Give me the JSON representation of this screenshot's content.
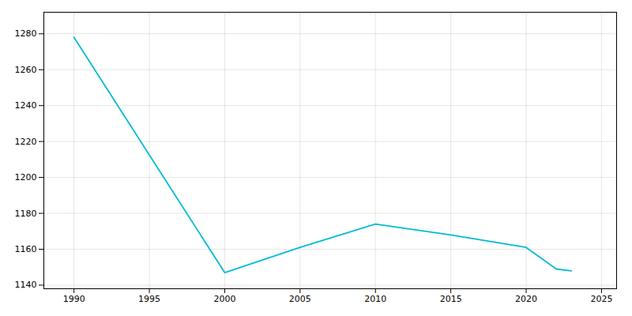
{
  "chart_data": {
    "type": "line",
    "x": [
      1990,
      2000,
      2005,
      2010,
      2015,
      2020,
      2022,
      2023
    ],
    "values": [
      1278,
      1147,
      1161,
      1174,
      1168,
      1161,
      1149,
      1148
    ],
    "color": "#00bcd4",
    "xlim": [
      1988,
      2026
    ],
    "ylim": [
      1138,
      1292
    ],
    "xticks": [
      1990,
      1995,
      2000,
      2005,
      2010,
      2015,
      2020,
      2025
    ],
    "yticks": [
      1140,
      1160,
      1180,
      1200,
      1220,
      1240,
      1260,
      1280
    ],
    "grid": true
  }
}
